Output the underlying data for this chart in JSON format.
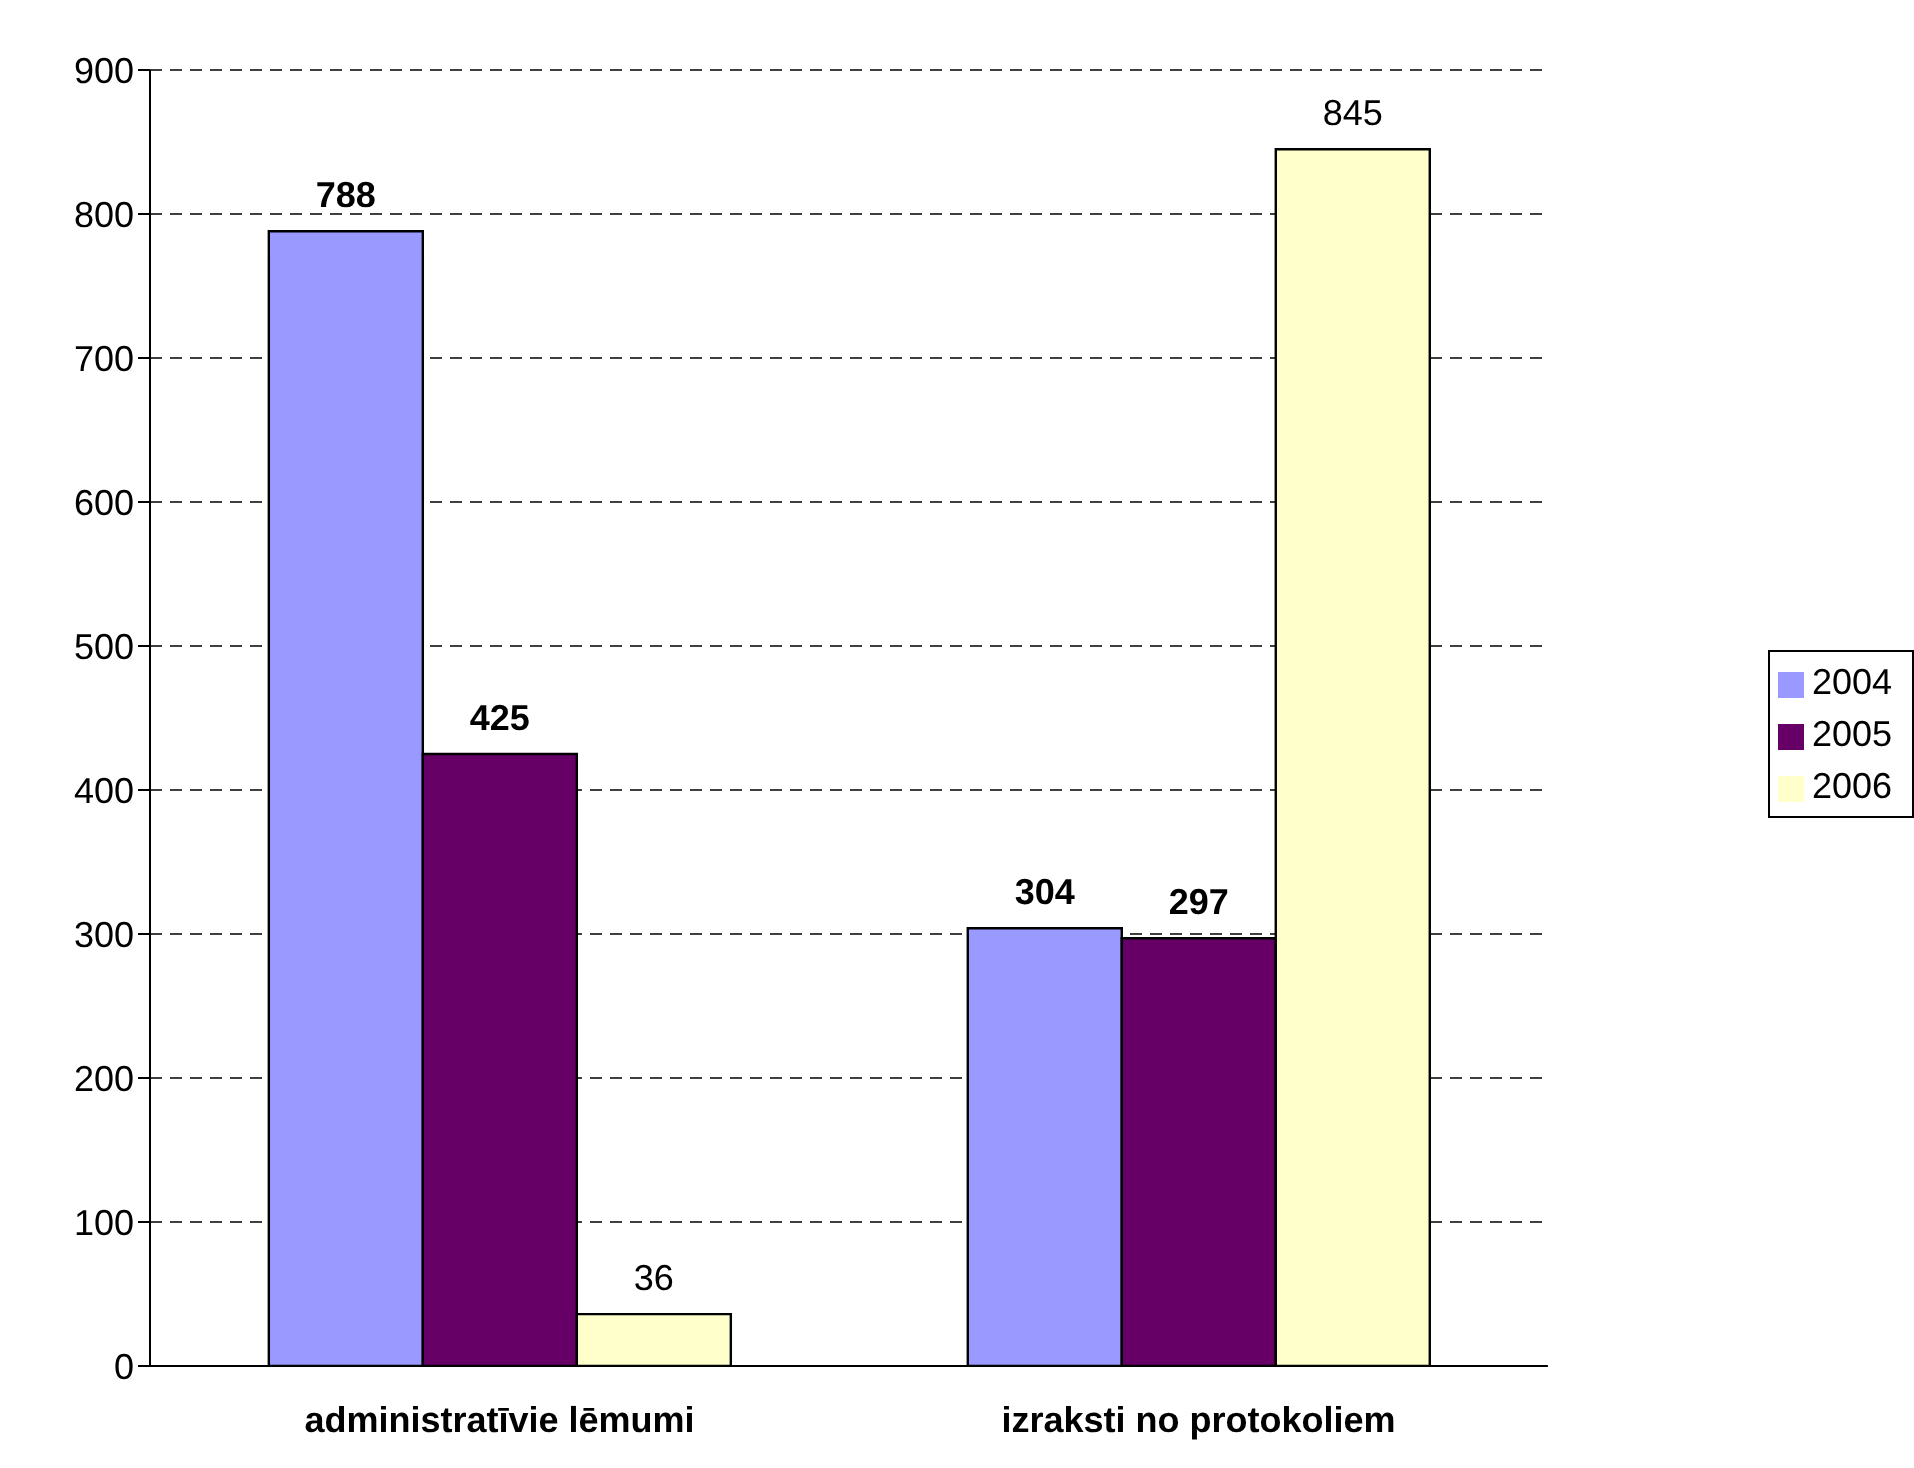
{
  "chart_data": {
    "type": "bar",
    "categories": [
      "administratīvie lēmumi",
      "izraksti no protokoliem"
    ],
    "series": [
      {
        "name": "2004",
        "color": "#9999ff",
        "values": [
          788,
          304
        ]
      },
      {
        "name": "2005",
        "color": "#660066",
        "values": [
          425,
          297
        ]
      },
      {
        "name": "2006",
        "color": "#ffffcc",
        "values": [
          36,
          845
        ]
      }
    ],
    "ylim": [
      0,
      900
    ],
    "yticks": [
      0,
      100,
      200,
      300,
      400,
      500,
      600,
      700,
      800,
      900
    ],
    "grid": "y",
    "legend": "right",
    "data_labels": true
  }
}
